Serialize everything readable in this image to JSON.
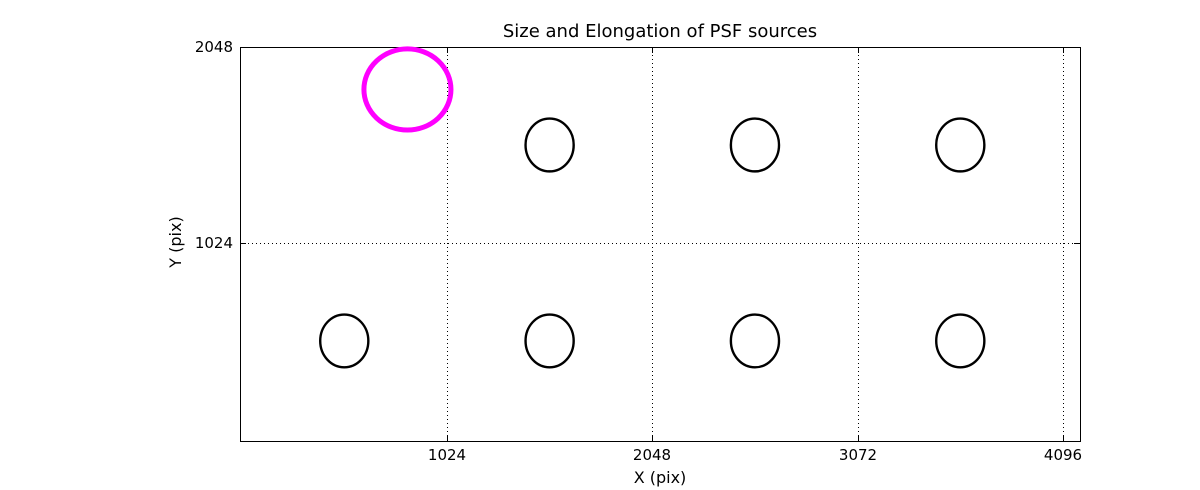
{
  "figure": {
    "background": "#ffffff",
    "axis_color": "#000000"
  },
  "chart_data": {
    "type": "scatter",
    "title": "Size and Elongation of PSF sources",
    "xlabel": "X (pix)",
    "ylabel": "Y (pix)",
    "xlim": [
      -8,
      4181
    ],
    "ylim": [
      -11,
      2048
    ],
    "xticks": [
      1024,
      2048,
      3072,
      4096
    ],
    "yticks": [
      1024,
      2048
    ],
    "grid": {
      "on": true,
      "style": "dotted",
      "color": "#000000"
    },
    "legend": "none",
    "marker_meaning": "each ellipse shows the size and elongation of one PSF source at its detector position",
    "highlight_color": "#ff00ff",
    "source_color": "#000000",
    "sources": [
      {
        "x": 827,
        "y": 1826,
        "a": 217,
        "b": 212,
        "color": "#ff00ff",
        "lw": 5,
        "highlight": true
      },
      {
        "x": 1536,
        "y": 1536,
        "a": 120,
        "b": 138,
        "color": "#000000",
        "lw": 2.4,
        "highlight": false
      },
      {
        "x": 2560,
        "y": 1536,
        "a": 120,
        "b": 138,
        "color": "#000000",
        "lw": 2.4,
        "highlight": false
      },
      {
        "x": 3584,
        "y": 1536,
        "a": 120,
        "b": 138,
        "color": "#000000",
        "lw": 2.4,
        "highlight": false
      },
      {
        "x": 512,
        "y": 512,
        "a": 120,
        "b": 138,
        "color": "#000000",
        "lw": 2.4,
        "highlight": false
      },
      {
        "x": 1536,
        "y": 512,
        "a": 120,
        "b": 138,
        "color": "#000000",
        "lw": 2.4,
        "highlight": false
      },
      {
        "x": 2560,
        "y": 512,
        "a": 120,
        "b": 138,
        "color": "#000000",
        "lw": 2.4,
        "highlight": false
      },
      {
        "x": 3584,
        "y": 512,
        "a": 120,
        "b": 138,
        "color": "#000000",
        "lw": 2.4,
        "highlight": false
      }
    ]
  }
}
